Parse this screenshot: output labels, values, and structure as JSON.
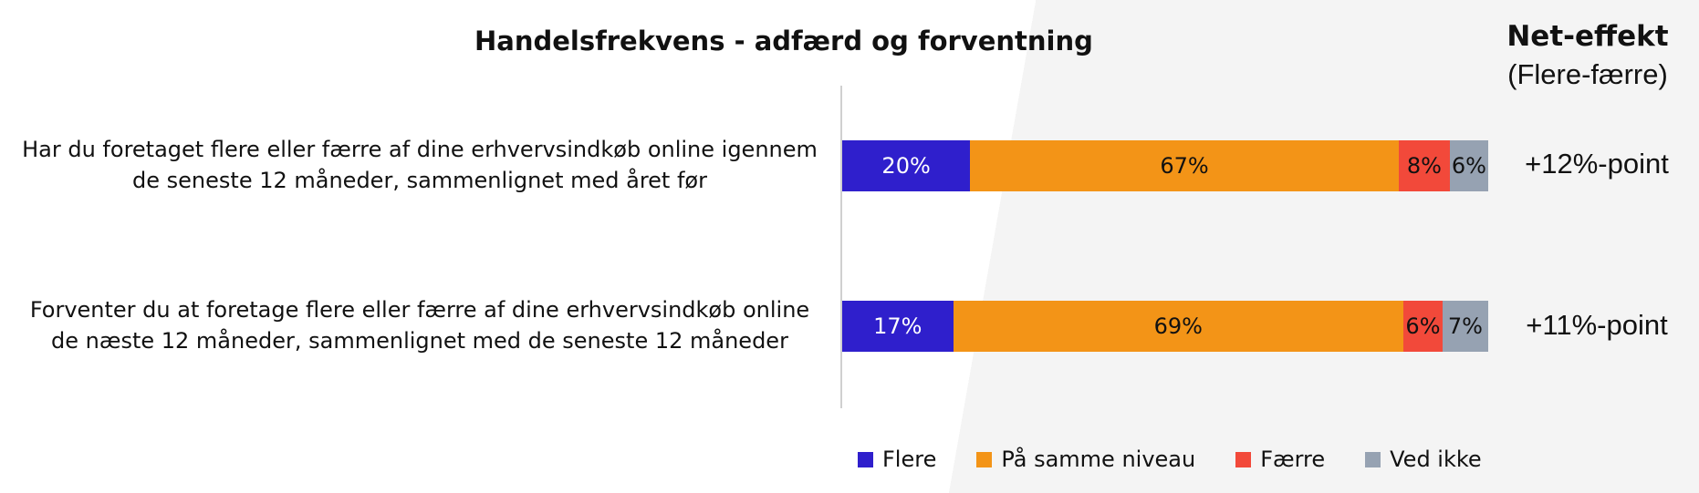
{
  "chart_data": {
    "type": "bar",
    "orientation": "horizontal-stacked-percent",
    "title": "Handelsfrekvens - adfærd og forventning",
    "net_header": "Net-effekt",
    "net_subheader": "(Flere-færre)",
    "categories": [
      "Har du foretaget flere eller færre af dine erhvervsindkøb online igennem de seneste 12 måneder, sammenlignet med året før",
      "Forventer du at foretage flere eller færre af dine erhvervsindkøb online de næste 12 måneder, sammenlignet med de seneste 12 måneder"
    ],
    "category_lines": [
      [
        "Har du foretaget flere eller færre af dine erhvervsindkøb online igennem",
        "de seneste 12 måneder, sammenlignet med året før"
      ],
      [
        "Forventer du at foretage flere eller færre af dine erhvervsindkøb online",
        "de næste 12 måneder, sammenlignet med de seneste 12 måneder"
      ]
    ],
    "series": [
      {
        "name": "Flere",
        "color": "#2f1fcc",
        "text_color": "#ffffff",
        "values": [
          20,
          17
        ],
        "labels": [
          "20%",
          "17%"
        ]
      },
      {
        "name": "På samme niveau",
        "color": "#f39417",
        "text_color": "#111111",
        "values": [
          67,
          69
        ],
        "labels": [
          "67%",
          "69%"
        ]
      },
      {
        "name": "Færre",
        "color": "#f2493a",
        "text_color": "#111111",
        "values": [
          8,
          6
        ],
        "labels": [
          "8%",
          "6%"
        ]
      },
      {
        "name": "Ved ikke",
        "color": "#96a2b2",
        "text_color": "#111111",
        "values": [
          6,
          7
        ],
        "labels": [
          "6%",
          "7%"
        ]
      }
    ],
    "net_effect": [
      "+12%-point",
      "+11%-point"
    ],
    "xlim": [
      0,
      101
    ],
    "legend_position": "bottom",
    "grid": false
  }
}
